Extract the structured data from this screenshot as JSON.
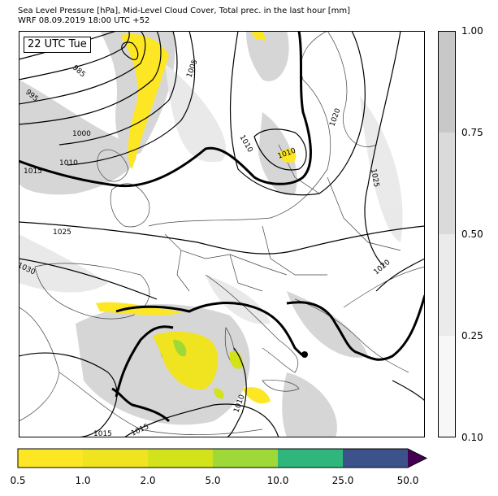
{
  "title": {
    "line1": "Sea Level Pressure [hPa], Mid-Level Cloud Cover, Total prec. in the last hour [mm]",
    "line2": "WRF 08.09.2019 18:00 UTC +52"
  },
  "time_label": "22 UTC Tue",
  "isobar_labels": [
    "985",
    "995",
    "1000",
    "1005",
    "1010",
    "1010",
    "1010",
    "1010",
    "1015",
    "1015",
    "1015",
    "1020",
    "1020",
    "1025",
    "1025",
    "1030"
  ],
  "cloud_colorbar": {
    "ticks": [
      "1.00",
      "0.75",
      "0.50",
      "0.25",
      "0.10"
    ],
    "colors": [
      "#c8c8c8",
      "#dadada",
      "#ebebeb",
      "#f7f7f7"
    ]
  },
  "precip_colorbar": {
    "ticks": [
      "0.5",
      "1.0",
      "2.0",
      "5.0",
      "10.0",
      "25.0",
      "50.0"
    ],
    "colors": [
      "#fde725",
      "#f0e31f",
      "#d2e21b",
      "#9fd938",
      "#2eb67c",
      "#3b528b",
      "#440154"
    ]
  }
}
